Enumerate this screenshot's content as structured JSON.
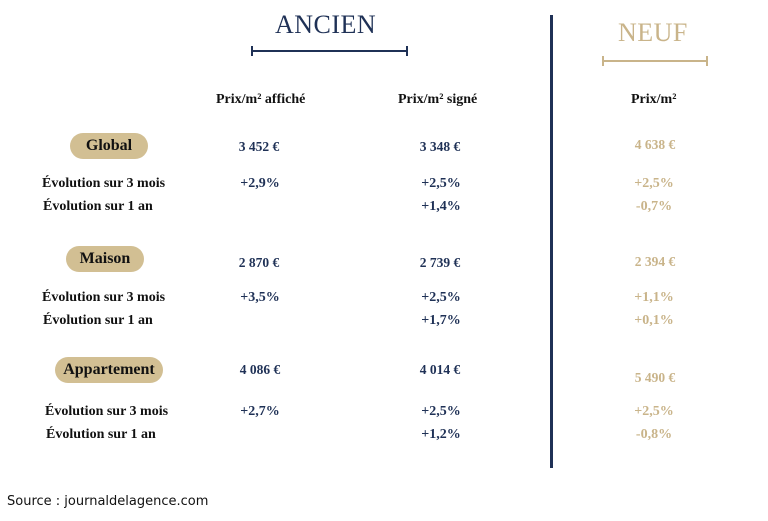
{
  "headers": {
    "ancien": "ANCIEN",
    "neuf": "NEUF",
    "col_affiche": "Prix/m² affiché",
    "col_signe": "Prix/m² signé",
    "col_neuf": "Prix/m²"
  },
  "sections": [
    {
      "name": "Global",
      "affiche": "3 452 €",
      "signe": "3 348 €",
      "neuf": "4 638 €",
      "evo3_label": "Évolution sur 3 mois",
      "evo3_affiche": "+2,9%",
      "evo3_signe": "+2,5%",
      "evo3_neuf": "+2,5%",
      "evo1_label": "Évolution sur 1 an",
      "evo1_signe": "+1,4%",
      "evo1_neuf": "-0,7%"
    },
    {
      "name": "Maison",
      "affiche": "2 870 €",
      "signe": "2 739 €",
      "neuf": "2 394 €",
      "evo3_label": "Évolution sur 3 mois",
      "evo3_affiche": "+3,5%",
      "evo3_signe": "+2,5%",
      "evo3_neuf": "+1,1%",
      "evo1_label": "Évolution sur 1 an",
      "evo1_signe": "+1,7%",
      "evo1_neuf": "+0,1%"
    },
    {
      "name": "Appartement",
      "affiche": "4 086 €",
      "signe": "4 014 €",
      "neuf": "5 490 €",
      "evo3_label": "Évolution sur 3 mois",
      "evo3_affiche": "+2,7%",
      "evo3_signe": "+2,5%",
      "evo3_neuf": "+2,5%",
      "evo1_label": "Évolution sur 1 an",
      "evo1_signe": "+1,2%",
      "evo1_neuf": "-0,8%"
    }
  ],
  "source": "Source : journaldelagence.com",
  "colors": {
    "navy": "#1f3156",
    "gold": "#c9b48a",
    "pill": "#d2bf93"
  }
}
